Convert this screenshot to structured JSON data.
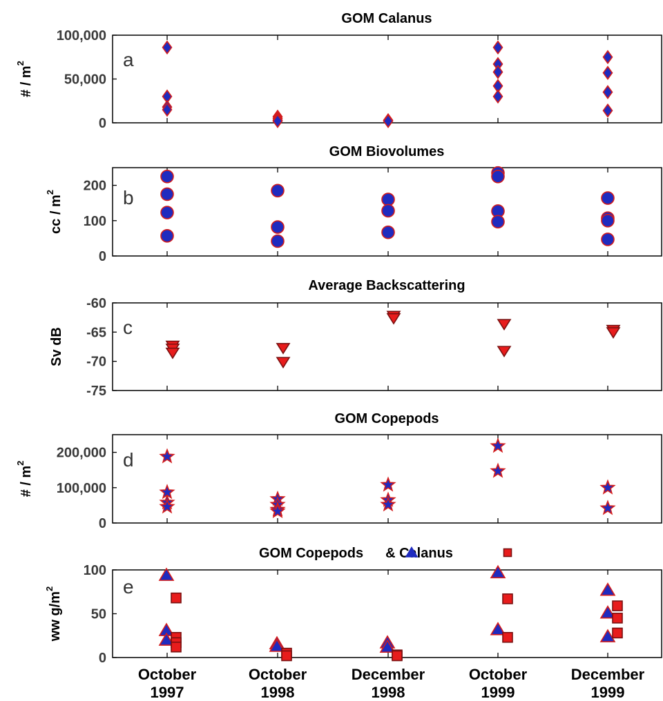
{
  "chart_data": [
    {
      "id": "a",
      "type": "scatter",
      "title": "GOM Calanus",
      "panel_letter": "a",
      "ylabel_main": "# / m",
      "ylabel_sup": "2",
      "ylim": [
        0,
        100000
      ],
      "yticks": [
        0,
        50000,
        100000
      ],
      "ytick_labels": [
        "0",
        "50,000",
        "100,000"
      ],
      "categories": [
        "October 1997",
        "October 1998",
        "December 1998",
        "October 1999",
        "December 1999"
      ],
      "marker": "diamond",
      "fill": "#1f2bbf",
      "stroke": "#d41c1c",
      "series": [
        {
          "category": "October 1997",
          "values": [
            86000,
            30000,
            18000,
            15000
          ]
        },
        {
          "category": "October 1998",
          "values": [
            7000,
            5000,
            3000,
            2000
          ]
        },
        {
          "category": "December 1998",
          "values": [
            3000,
            2000
          ]
        },
        {
          "category": "October 1999",
          "values": [
            86000,
            67000,
            58000,
            42000,
            30000
          ]
        },
        {
          "category": "December 1999",
          "values": [
            75000,
            57000,
            35000,
            14000
          ]
        }
      ]
    },
    {
      "id": "b",
      "type": "scatter",
      "title": "GOM Biovolumes",
      "panel_letter": "b",
      "ylabel_main": "cc / m",
      "ylabel_sup": "2",
      "ylim": [
        0,
        250
      ],
      "yticks": [
        0,
        100,
        200
      ],
      "ytick_labels": [
        "0",
        "100",
        "200"
      ],
      "categories": [
        "October 1997",
        "October 1998",
        "December 1998",
        "October 1999",
        "December 1999"
      ],
      "marker": "circle",
      "fill": "#1f2bbf",
      "stroke": "#d41c1c",
      "series": [
        {
          "category": "October 1997",
          "values": [
            225,
            175,
            123,
            57
          ]
        },
        {
          "category": "October 1998",
          "values": [
            185,
            82,
            42
          ]
        },
        {
          "category": "December 1998",
          "values": [
            160,
            128,
            67
          ]
        },
        {
          "category": "October 1999",
          "values": [
            235,
            225,
            127,
            97
          ]
        },
        {
          "category": "December 1999",
          "values": [
            164,
            107,
            100,
            47
          ]
        }
      ]
    },
    {
      "id": "c",
      "type": "scatter",
      "title": "Average Backscattering",
      "panel_letter": "c",
      "ylabel_main": "Sv dB",
      "ylabel_sup": "",
      "ylim": [
        -75,
        -60
      ],
      "yticks": [
        -75,
        -70,
        -65,
        -60
      ],
      "ytick_labels": [
        "-75",
        "-70",
        "-65",
        "-60"
      ],
      "categories": [
        "October 1997",
        "October 1998",
        "December 1998",
        "October 1999",
        "December 1999"
      ],
      "marker": "triangle-down",
      "fill": "#e81c1c",
      "stroke": "#7a1010",
      "series": [
        {
          "category": "October 1997",
          "values": [
            -67.3,
            -67.8,
            -68.5
          ]
        },
        {
          "category": "October 1998",
          "values": [
            -67.7,
            -70.1
          ]
        },
        {
          "category": "December 1998",
          "values": [
            -62.2,
            -62.6
          ]
        },
        {
          "category": "October 1999",
          "values": [
            -63.6,
            -68.2
          ]
        },
        {
          "category": "December 1999",
          "values": [
            -64.6,
            -65.0
          ]
        }
      ]
    },
    {
      "id": "d",
      "type": "scatter",
      "title": "GOM Copepods",
      "panel_letter": "d",
      "ylabel_main": "# / m",
      "ylabel_sup": "2",
      "ylim": [
        0,
        250000
      ],
      "yticks": [
        0,
        100000,
        200000
      ],
      "ytick_labels": [
        "0",
        "100,000",
        "200,000"
      ],
      "categories": [
        "October 1997",
        "October 1998",
        "December 1998",
        "October 1999",
        "December 1999"
      ],
      "marker": "star",
      "fill": "#1f2bbf",
      "stroke": "#d41c1c",
      "series": [
        {
          "category": "October 1997",
          "values": [
            188000,
            87000,
            58000,
            46000
          ]
        },
        {
          "category": "October 1998",
          "values": [
            68000,
            52000,
            38000,
            33000
          ]
        },
        {
          "category": "December 1998",
          "values": [
            108000,
            65000,
            52000
          ]
        },
        {
          "category": "October 1999",
          "values": [
            218000,
            147000
          ]
        },
        {
          "category": "December 1999",
          "values": [
            100000,
            42000
          ]
        }
      ]
    },
    {
      "id": "e",
      "type": "scatter",
      "title": "GOM Copepods",
      "title_part2": "& Calanus",
      "panel_letter": "e",
      "ylabel_main": "ww g/m",
      "ylabel_sup": "2",
      "ylim": [
        0,
        100
      ],
      "yticks": [
        0,
        50,
        100
      ],
      "ytick_labels": [
        "0",
        "50",
        "100"
      ],
      "categories": [
        "October 1997",
        "October 1998",
        "December 1998",
        "October 1999",
        "December 1999"
      ],
      "series": [
        {
          "marker": "triangle-up",
          "fill": "#1f2bbf",
          "stroke": "#d41c1c",
          "points": [
            {
              "category": "October 1997",
              "values": [
                94,
                31,
                20
              ]
            },
            {
              "category": "October 1998",
              "values": [
                16,
                13
              ]
            },
            {
              "category": "December 1998",
              "values": [
                17,
                12
              ]
            },
            {
              "category": "October 1999",
              "values": [
                97,
                32
              ]
            },
            {
              "category": "December 1999",
              "values": [
                77,
                51,
                24
              ]
            }
          ]
        },
        {
          "marker": "square",
          "fill": "#e81c1c",
          "stroke": "#7a1010",
          "points": [
            {
              "category": "October 1997",
              "values": [
                68,
                23,
                17,
                12
              ]
            },
            {
              "category": "October 1998",
              "values": [
                5,
                2
              ]
            },
            {
              "category": "December 1998",
              "values": [
                3,
                2
              ]
            },
            {
              "category": "October 1999",
              "values": [
                67,
                23
              ]
            },
            {
              "category": "December 1999",
              "values": [
                59,
                45,
                28
              ]
            }
          ]
        }
      ]
    }
  ],
  "x_axis": {
    "labels": [
      [
        "October",
        "1997"
      ],
      [
        "October",
        "1998"
      ],
      [
        "December",
        "1998"
      ],
      [
        "October",
        "1999"
      ],
      [
        "December",
        "1999"
      ]
    ]
  }
}
